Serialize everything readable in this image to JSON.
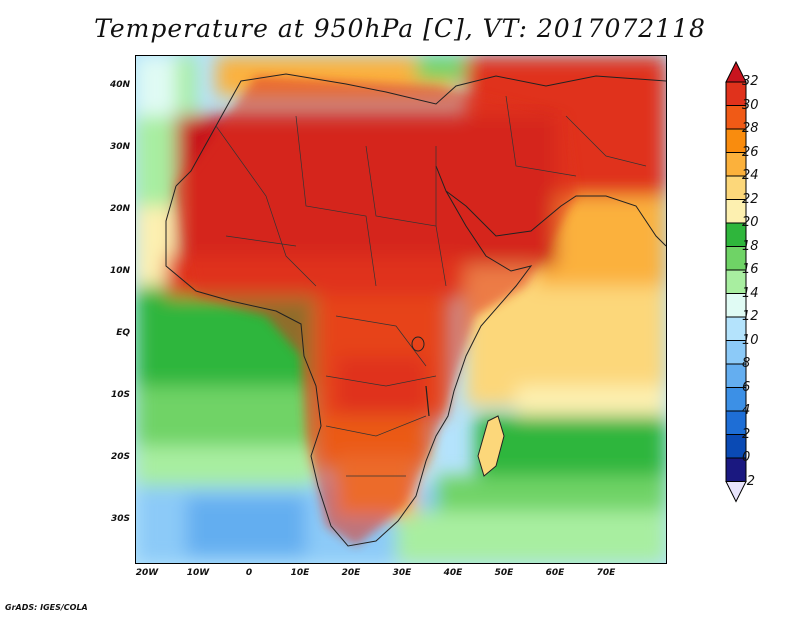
{
  "title": "Temperature at 950hPa [C], VT: 2017072118",
  "lat_ticks": [
    {
      "label": "40N",
      "lat": 40
    },
    {
      "label": "30N",
      "lat": 30
    },
    {
      "label": "20N",
      "lat": 20
    },
    {
      "label": "10N",
      "lat": 10
    },
    {
      "label": "EQ",
      "lat": 0
    },
    {
      "label": "10S",
      "lat": -10
    },
    {
      "label": "20S",
      "lat": -20
    },
    {
      "label": "30S",
      "lat": -30
    }
  ],
  "lon_ticks": [
    {
      "label": "20W",
      "lon": -20
    },
    {
      "label": "10W",
      "lon": -10
    },
    {
      "label": "0",
      "lon": 0
    },
    {
      "label": "10E",
      "lon": 10
    },
    {
      "label": "20E",
      "lon": 20
    },
    {
      "label": "30E",
      "lon": 30
    },
    {
      "label": "40E",
      "lon": 40
    },
    {
      "label": "50E",
      "lon": 50
    },
    {
      "label": "60E",
      "lon": 60
    },
    {
      "label": "70E",
      "lon": 70
    }
  ],
  "colorbar": {
    "levels": [
      "32",
      "30",
      "28",
      "26",
      "24",
      "22",
      "20",
      "18",
      "16",
      "14",
      "12",
      "10",
      "8",
      "6",
      "4",
      "2",
      "0",
      "-2"
    ],
    "colors": [
      "#c8141e",
      "#e0321c",
      "#f05a16",
      "#f98c0e",
      "#fbb13c",
      "#fcd77a",
      "#fdf0b0",
      "#2fb63c",
      "#6fd366",
      "#a8eea0",
      "#e0fbf4",
      "#b4e3fc",
      "#8ccaf8",
      "#64aef0",
      "#3c90e6",
      "#1e6ed6",
      "#0a4ab4",
      "#1a1880",
      "#e8e4fc"
    ]
  },
  "credit": "GrADS: IGES/COLA"
}
